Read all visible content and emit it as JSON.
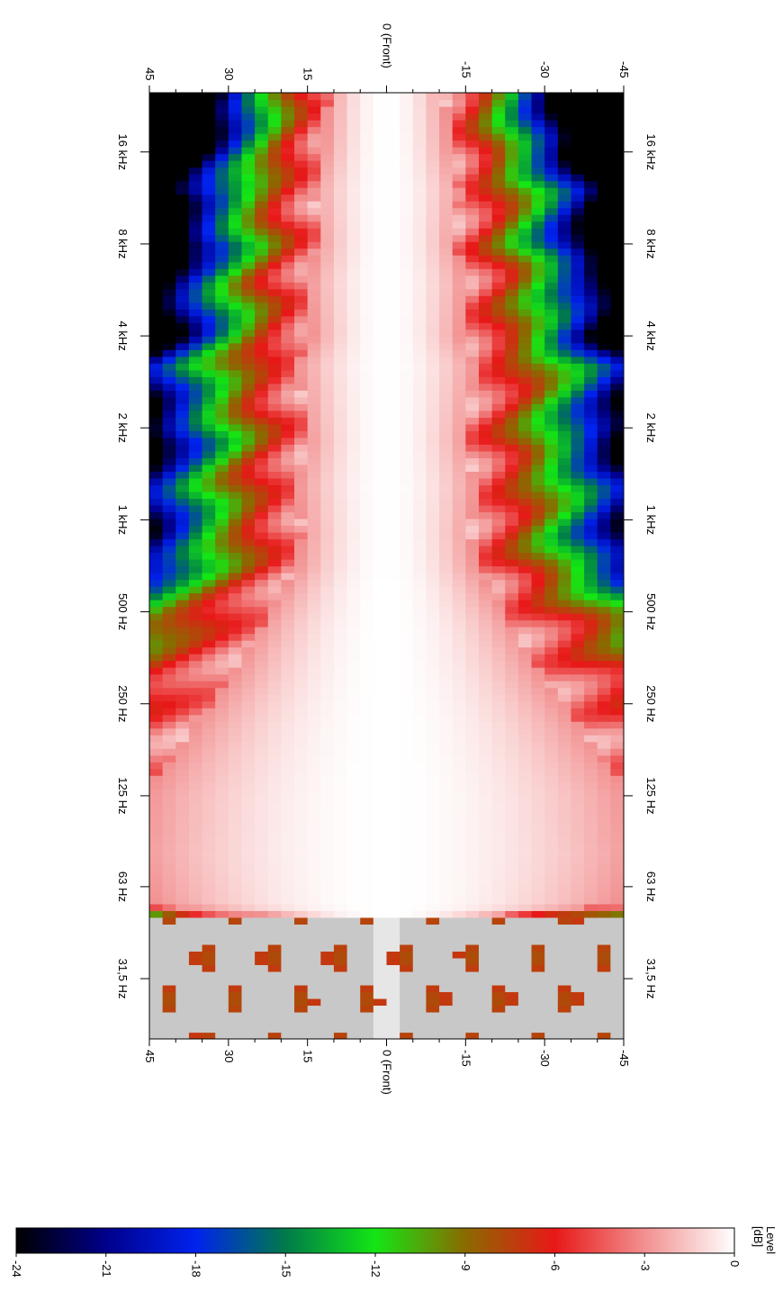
{
  "chart_data": {
    "type": "heatmap",
    "orientation": "rotated 90 degrees clockwise",
    "frequency_axis": {
      "scale": "log",
      "range_hz": [
        20,
        25000
      ],
      "ticks": [
        {
          "label": "16 kHz",
          "hz": 16000
        },
        {
          "label": "8 kHz",
          "hz": 8000
        },
        {
          "label": "4 kHz",
          "hz": 4000
        },
        {
          "label": "2 kHz",
          "hz": 2000
        },
        {
          "label": "1 kHz",
          "hz": 1000
        },
        {
          "label": "500 Hz",
          "hz": 500
        },
        {
          "label": "250 Hz",
          "hz": 250
        },
        {
          "label": "125 Hz",
          "hz": 125
        },
        {
          "label": "63 Hz",
          "hz": 63
        },
        {
          "label": "31,5 Hz",
          "hz": 31.5
        }
      ]
    },
    "angle_axis": {
      "range_deg": [
        45,
        -45
      ],
      "ticks": [
        {
          "label": "45",
          "deg": 45
        },
        {
          "label": "30",
          "deg": 30
        },
        {
          "label": "15",
          "deg": 15
        },
        {
          "label": "0 (Front)",
          "deg": 0
        },
        {
          "label": "-15",
          "deg": -15
        },
        {
          "label": "-30",
          "deg": -30
        },
        {
          "label": "-45",
          "deg": -45
        }
      ],
      "minor_step_deg": 5
    },
    "colorbar": {
      "title_line1": "Level",
      "title_line2": "[dB]",
      "range_db": [
        -24,
        0
      ],
      "ticks": [
        "0",
        "-3",
        "-6",
        "-9",
        "-12",
        "-15",
        "-18",
        "-21",
        "-24"
      ],
      "stops": [
        {
          "db": 0,
          "color": "#ffffff"
        },
        {
          "db": -3,
          "color": "#f29090"
        },
        {
          "db": -6,
          "color": "#e81818"
        },
        {
          "db": -9,
          "color": "#8a6a00"
        },
        {
          "db": -12,
          "color": "#14e614"
        },
        {
          "db": -15,
          "color": "#007a4a"
        },
        {
          "db": -18,
          "color": "#0022ee"
        },
        {
          "db": -21,
          "color": "#00008a"
        },
        {
          "db": -24,
          "color": "#000000"
        }
      ]
    },
    "beam_width_deg": [
      {
        "hz": 20,
        "w": 14,
        "low_band": true
      },
      {
        "hz": 40,
        "w": 16,
        "low_band": true
      },
      {
        "hz": 50,
        "w": 16,
        "low_band": true
      },
      {
        "hz": 55,
        "w": 44
      },
      {
        "hz": 80,
        "w": 48
      },
      {
        "hz": 125,
        "w": 46
      },
      {
        "hz": 200,
        "w": 38
      },
      {
        "hz": 300,
        "w": 30
      },
      {
        "hz": 450,
        "w": 24
      },
      {
        "hz": 700,
        "w": 17
      },
      {
        "hz": 900,
        "w": 16
      },
      {
        "hz": 1300,
        "w": 17
      },
      {
        "hz": 1800,
        "w": 15
      },
      {
        "hz": 2500,
        "w": 16
      },
      {
        "hz": 3200,
        "w": 17
      },
      {
        "hz": 4000,
        "w": 14
      },
      {
        "hz": 6000,
        "w": 15
      },
      {
        "hz": 8000,
        "w": 13
      },
      {
        "hz": 12000,
        "w": 14
      },
      {
        "hz": 16000,
        "w": 12
      },
      {
        "hz": 25000,
        "w": 11
      }
    ]
  }
}
